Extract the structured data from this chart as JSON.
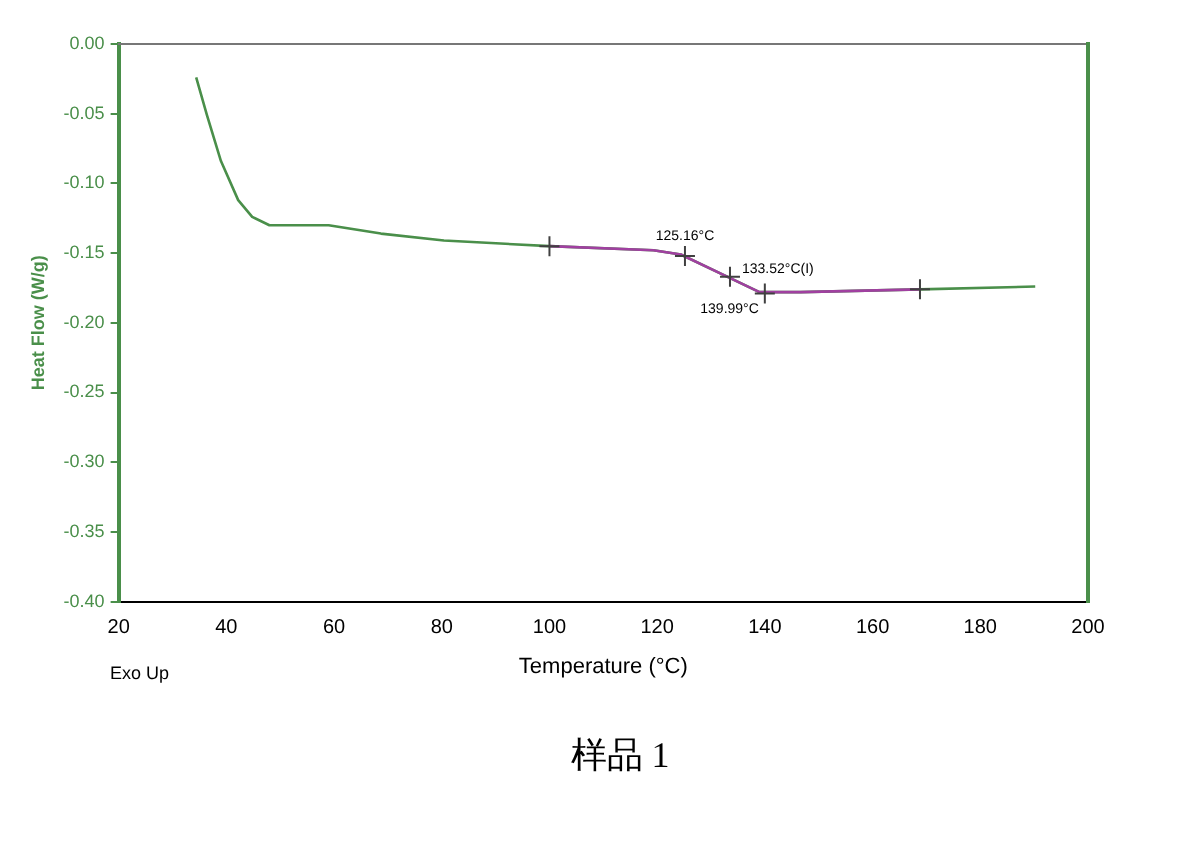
{
  "chart_data": {
    "type": "line",
    "xlabel": "Temperature (°C)",
    "ylabel": "Heat Flow (W/g)",
    "xlim": [
      20,
      200
    ],
    "xticks": [
      20,
      40,
      60,
      80,
      100,
      120,
      140,
      160,
      180,
      200
    ],
    "ylim": [
      -0.4,
      0
    ],
    "yticks": [
      {
        "value": 0,
        "label": "0.00"
      },
      {
        "value": -0.05,
        "label": "-0.05"
      },
      {
        "value": -0.1,
        "label": "-0.10"
      },
      {
        "value": -0.15,
        "label": "-0.15"
      },
      {
        "value": -0.2,
        "label": "-0.20"
      },
      {
        "value": -0.25,
        "label": "-0.25"
      },
      {
        "value": -0.3,
        "label": "-0.30"
      },
      {
        "value": -0.35,
        "label": "-0.35"
      },
      {
        "value": -0.4,
        "label": "-0.40"
      }
    ],
    "grid": false,
    "legend": false,
    "marker": "none",
    "line_style": "solid",
    "series": [
      {
        "type": "line",
        "color": "#4a8f4a",
        "x": [
          34.4,
          36.4,
          39,
          42.2,
          44.8,
          48,
          59,
          68.7,
          80.4,
          100,
          119.3,
          124.4,
          132.5,
          139,
          146.6,
          168.8,
          190.2
        ],
        "values": [
          -0.024,
          -0.051,
          -0.084,
          -0.112,
          -0.124,
          -0.13,
          -0.13,
          -0.136,
          -0.141,
          -0.145,
          -0.148,
          -0.151,
          -0.166,
          -0.178,
          -0.178,
          -0.176,
          -0.174
        ]
      },
      {
        "type": "line",
        "color": "#a040a0",
        "x": [
          100,
          119.3,
          124.4,
          132.5,
          139,
          146.6,
          168.8
        ],
        "values": [
          -0.145,
          -0.148,
          -0.151,
          -0.166,
          -0.178,
          -0.178,
          -0.176
        ]
      },
      {
        "type": "scatter",
        "color": "#404040",
        "marker": "cross",
        "x": [
          100,
          125.16,
          133.52,
          139.99,
          168.8
        ],
        "values": [
          -0.145,
          -0.152,
          -0.167,
          -0.179,
          -0.176
        ]
      }
    ],
    "annotations": [
      {
        "text": "125.16°C",
        "x": 125.16,
        "y": -0.152
      },
      {
        "text": "133.52°C(I)",
        "x": 133.52,
        "y": -0.167
      },
      {
        "text": "139.99°C",
        "x": 139.99,
        "y": -0.179
      },
      "Exo Up",
      "样品 1"
    ]
  }
}
